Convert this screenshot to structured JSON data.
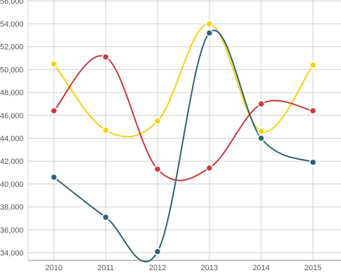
{
  "chart_data": {
    "type": "line",
    "x": [
      "2010",
      "2011",
      "2012",
      "2013",
      "2014",
      "2015"
    ],
    "y_ticks": [
      "34,000",
      "36,000",
      "38,000",
      "40,000",
      "42,000",
      "44,000",
      "46,000",
      "48,000",
      "50,000",
      "52,000",
      "54,000",
      "56,000"
    ],
    "ylim": [
      33500,
      56000
    ],
    "grid": true,
    "smooth": true,
    "series": [
      {
        "color": "#f5d20f",
        "values": [
          50500,
          44700,
          45500,
          54000,
          44600,
          50400
        ]
      },
      {
        "color": "#c93a3a",
        "values": [
          46400,
          51100,
          41300,
          41400,
          47000,
          46400
        ]
      },
      {
        "color": "#2a6374",
        "values": [
          40600,
          37100,
          34100,
          53200,
          44000,
          41900
        ]
      }
    ],
    "title": "",
    "xlabel": "",
    "ylabel": ""
  }
}
